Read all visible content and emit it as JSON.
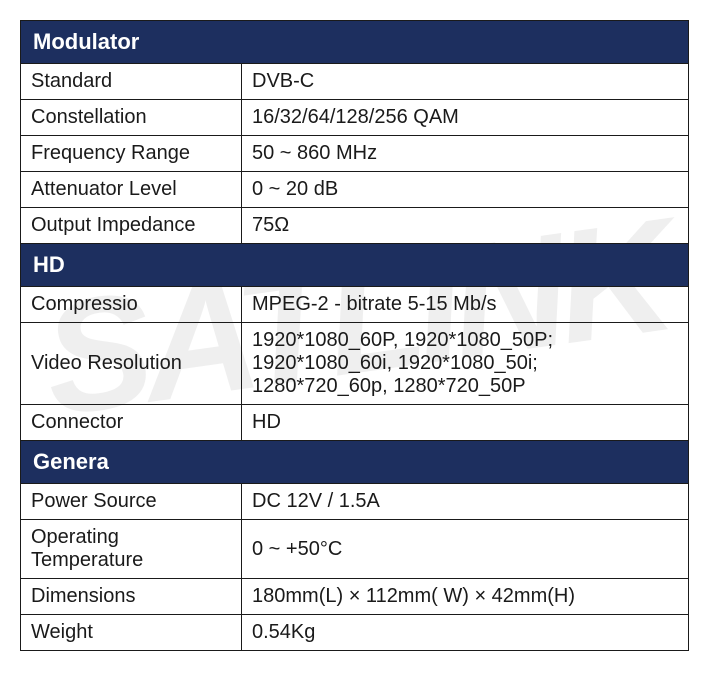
{
  "colors": {
    "header_bg": "#1d2f5f",
    "header_text": "#ffffff",
    "border": "#1a1a1a",
    "cell_text": "#1a1a1a",
    "watermark": "rgba(150,150,150,0.15)"
  },
  "watermark_text": "SATLINK",
  "sections": [
    {
      "title": "Modulator",
      "rows": [
        {
          "label": "Standard",
          "value": "DVB-C"
        },
        {
          "label": "Constellation",
          "value": "16/32/64/128/256 QAM"
        },
        {
          "label": "Frequency Range",
          "value": "50 ~ 860 MHz"
        },
        {
          "label": "Attenuator Level",
          "value": "0 ~ 20 dB"
        },
        {
          "label": "Output Impedance",
          "value": "75Ω"
        }
      ]
    },
    {
      "title": "HD",
      "rows": [
        {
          "label": "Compressio",
          "value": "MPEG-2 - bitrate 5-15 Mb/s"
        },
        {
          "label": "Video Resolution",
          "value": "1920*1080_60P, 1920*1080_50P;\n1920*1080_60i, 1920*1080_50i;\n1280*720_60p, 1280*720_50P"
        },
        {
          "label": "Connector",
          "value": "HD"
        }
      ]
    },
    {
      "title": "Genera",
      "rows": [
        {
          "label": "Power Source",
          "value": "DC 12V / 1.5A"
        },
        {
          "label": "Operating Temperature",
          "value": "0 ~ +50°C"
        },
        {
          "label": "Dimensions",
          "value": "180mm(L) × 112mm(  W) × 42mm(H)"
        },
        {
          "label": "Weight",
          "value": "0.54Kg"
        }
      ]
    }
  ]
}
